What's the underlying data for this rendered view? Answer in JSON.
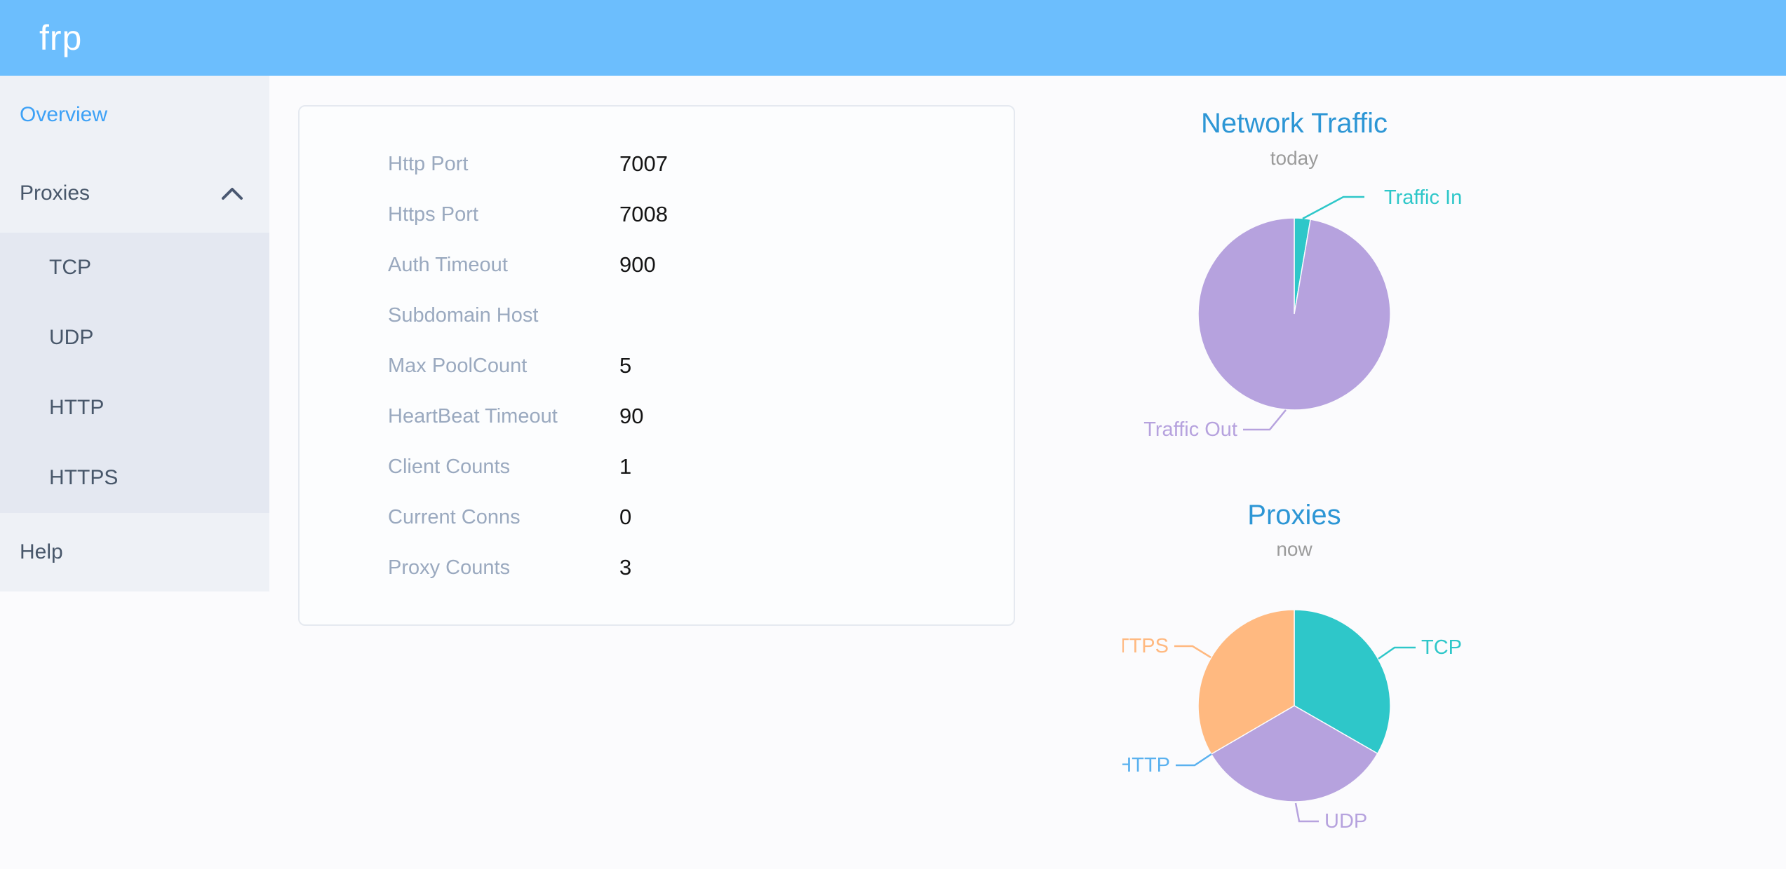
{
  "header": {
    "logo": "frp",
    "background": "#6cbefd"
  },
  "sidebar": {
    "background": "#eef1f6",
    "submenu_background": "#e4e8f1",
    "text_color": "#48576a",
    "active_color": "#3da1f6",
    "items": [
      {
        "label": "Overview",
        "active": true
      },
      {
        "label": "Proxies",
        "expanded": true,
        "children": [
          "TCP",
          "UDP",
          "HTTP",
          "HTTPS"
        ]
      },
      {
        "label": "Help"
      }
    ]
  },
  "server_info": {
    "rows": [
      {
        "label": "Http Port",
        "value": "7007"
      },
      {
        "label": "Https Port",
        "value": "7008"
      },
      {
        "label": "Auth Timeout",
        "value": "900"
      },
      {
        "label": "Subdomain Host",
        "value": ""
      },
      {
        "label": "Max PoolCount",
        "value": "5"
      },
      {
        "label": "HeartBeat Timeout",
        "value": "90"
      },
      {
        "label": "Client Counts",
        "value": "1"
      },
      {
        "label": "Current Conns",
        "value": "0"
      },
      {
        "label": "Proxy Counts",
        "value": "3"
      }
    ]
  },
  "chart_data": [
    {
      "type": "pie",
      "title": "Network Traffic",
      "subtitle": "today",
      "legend_position": "none",
      "slices": [
        {
          "name": "Traffic In",
          "percent": 2.7,
          "color": "#2ec7c9"
        },
        {
          "name": "Traffic Out",
          "percent": 97.3,
          "color": "#b6a2de"
        }
      ]
    },
    {
      "type": "pie",
      "title": "Proxies",
      "subtitle": "now",
      "legend_position": "none",
      "slices": [
        {
          "name": "TCP",
          "value": 1,
          "percent": 33.3,
          "color": "#2ec7c9"
        },
        {
          "name": "UDP",
          "value": 1,
          "percent": 33.3,
          "color": "#b6a2de"
        },
        {
          "name": "HTTP",
          "value": 0,
          "percent": 0,
          "color": "#5ab1ef"
        },
        {
          "name": "HTTPS",
          "value": 1,
          "percent": 33.4,
          "color": "#ffb980"
        }
      ]
    }
  ]
}
